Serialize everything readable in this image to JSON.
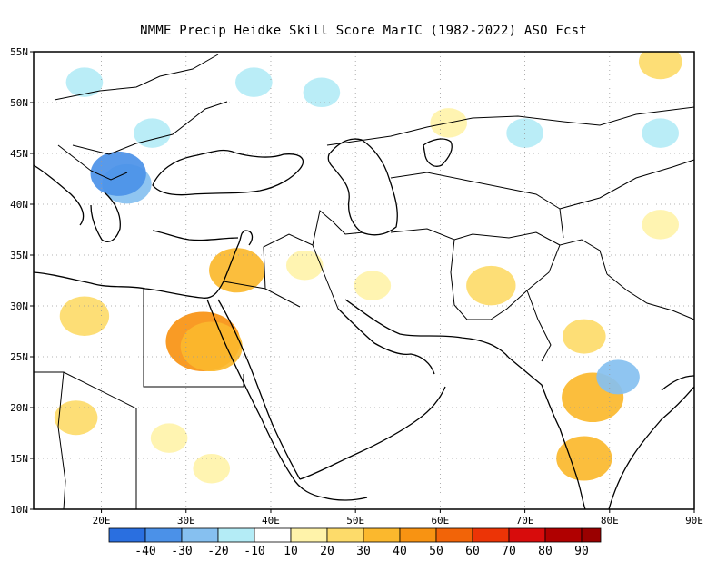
{
  "title": "NMME Precip Heidke Skill Score MarIC (1982-2022) ASO Fcst",
  "map": {
    "lon_range": [
      12,
      90
    ],
    "lat_range": [
      10,
      55
    ],
    "lon_ticks": [
      {
        "value": 20,
        "label": "20E"
      },
      {
        "value": 30,
        "label": "30E"
      },
      {
        "value": 40,
        "label": "40E"
      },
      {
        "value": 50,
        "label": "50E"
      },
      {
        "value": 60,
        "label": "60E"
      },
      {
        "value": 70,
        "label": "70E"
      },
      {
        "value": 80,
        "label": "80E"
      },
      {
        "value": 90,
        "label": "90E"
      }
    ],
    "lat_ticks": [
      {
        "value": 10,
        "label": "10N"
      },
      {
        "value": 15,
        "label": "15N"
      },
      {
        "value": 20,
        "label": "20N"
      },
      {
        "value": 25,
        "label": "25N"
      },
      {
        "value": 30,
        "label": "30N"
      },
      {
        "value": 35,
        "label": "35N"
      },
      {
        "value": 40,
        "label": "40N"
      },
      {
        "value": 45,
        "label": "45N"
      },
      {
        "value": 50,
        "label": "50N"
      },
      {
        "value": 55,
        "label": "55N"
      }
    ],
    "grid": "dotted",
    "skill_patches": [
      {
        "lon": 32,
        "lat": 26.5,
        "value": 45
      },
      {
        "lon": 33,
        "lat": 26,
        "value": 35
      },
      {
        "lon": 18,
        "lat": 29,
        "value": 25
      },
      {
        "lon": 17,
        "lat": 19,
        "value": 20
      },
      {
        "lon": 28,
        "lat": 17,
        "value": 15
      },
      {
        "lon": 33,
        "lat": 14,
        "value": 15
      },
      {
        "lon": 36,
        "lat": 33.5,
        "value": 30
      },
      {
        "lon": 44,
        "lat": 34,
        "value": 15
      },
      {
        "lon": 52,
        "lat": 32,
        "value": 15
      },
      {
        "lon": 66,
        "lat": 32,
        "value": 25
      },
      {
        "lon": 61,
        "lat": 48,
        "value": 15
      },
      {
        "lon": 78,
        "lat": 21,
        "value": 35
      },
      {
        "lon": 77,
        "lat": 15,
        "value": 30
      },
      {
        "lon": 77,
        "lat": 27,
        "value": 20
      },
      {
        "lon": 86,
        "lat": 54,
        "value": 20
      },
      {
        "lon": 86,
        "lat": 38,
        "value": 15
      },
      {
        "lon": 23,
        "lat": 42,
        "value": -25
      },
      {
        "lon": 22,
        "lat": 43,
        "value": -30
      },
      {
        "lon": 18,
        "lat": 52,
        "value": -15
      },
      {
        "lon": 26,
        "lat": 47,
        "value": -15
      },
      {
        "lon": 38,
        "lat": 52,
        "value": -15
      },
      {
        "lon": 46,
        "lat": 51,
        "value": -15
      },
      {
        "lon": 86,
        "lat": 47,
        "value": -15
      },
      {
        "lon": 81,
        "lat": 23,
        "value": -20
      },
      {
        "lon": 70,
        "lat": 47,
        "value": -15
      }
    ]
  },
  "colorbar": {
    "levels": [
      {
        "label": "-40",
        "color": "#2a6fe0"
      },
      {
        "label": "-30",
        "color": "#4b91e8"
      },
      {
        "label": "-20",
        "color": "#86c0f0"
      },
      {
        "label": "-10",
        "color": "#b4ecf6"
      },
      {
        "label": "10",
        "color": "#ffffff"
      },
      {
        "label": "20",
        "color": "#fff3aa"
      },
      {
        "label": "30",
        "color": "#fddb6a"
      },
      {
        "label": "40",
        "color": "#fbb82d"
      },
      {
        "label": "50",
        "color": "#f89312"
      },
      {
        "label": "60",
        "color": "#f26408"
      },
      {
        "label": "70",
        "color": "#ec3406"
      },
      {
        "label": "80",
        "color": "#d80c0c"
      },
      {
        "label": "90",
        "color": "#b00000"
      }
    ],
    "top_color": "#9a0000"
  }
}
